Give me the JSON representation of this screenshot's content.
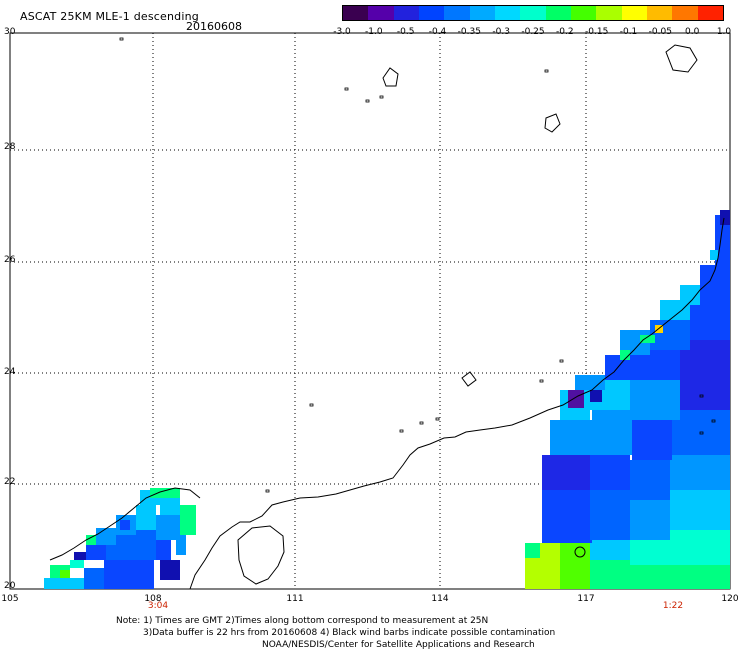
{
  "header": {
    "title": "ASCAT 25KM MLE-1 descending",
    "date": "20160608"
  },
  "colorbar": {
    "colors": [
      "#3a0050",
      "#5500aa",
      "#2222dd",
      "#0044ff",
      "#0077ff",
      "#00aaff",
      "#00d8ff",
      "#00ffcc",
      "#00ff66",
      "#44ff00",
      "#aaff00",
      "#ffff00",
      "#ffbb00",
      "#ff7700",
      "#ff2200"
    ],
    "ticks": [
      "-3.0",
      "-1.0",
      "-0.5",
      "-0.4",
      "-0.35",
      "-0.3",
      "-0.25",
      "-0.2",
      "-0.15",
      "-0.1",
      "-0.05",
      "0.0",
      "1.0"
    ]
  },
  "axes": {
    "y_ticks": [
      "30",
      "28",
      "26",
      "24",
      "22",
      "20"
    ],
    "x_ticks": [
      "105",
      "108",
      "111",
      "114",
      "117",
      "120"
    ],
    "pass_times": [
      "3:04",
      "1:22"
    ]
  },
  "notes": {
    "line1": "Note: 1) Times are GMT 2)Times along bottom correspond to measurement at 25N",
    "line2": "3)Data buffer is 22 hrs from 20160608 4) Black wind barbs indicate possible contamination",
    "line3": "NOAA/NESDIS/Center for Satellite Applications and Research"
  }
}
